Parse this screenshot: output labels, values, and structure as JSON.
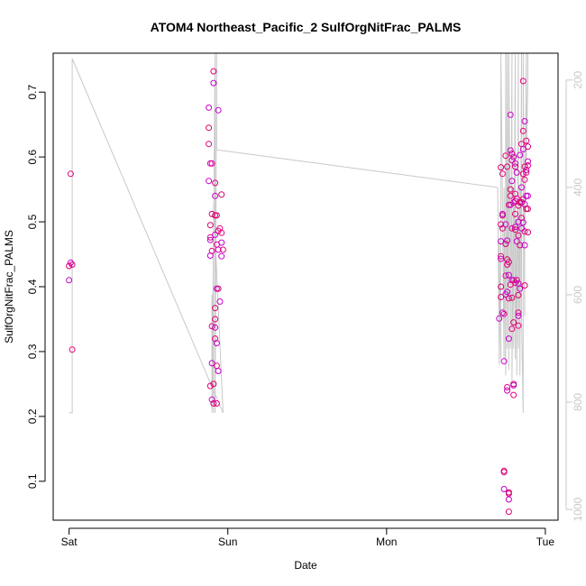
{
  "chart_data": {
    "type": "scatter",
    "title": "ATOM4 Northeast_Pacific_2 SulfOrgNitFrac_PALMS",
    "xlabel": "Date",
    "ylabel": "SulfOrgNitFrac_PALMS",
    "x_ticks": [
      "Sat",
      "Sun",
      "Mon",
      "Tue"
    ],
    "y_ticks": [
      "0.1",
      "0.2",
      "0.3",
      "0.4",
      "0.5",
      "0.6",
      "0.7"
    ],
    "y2_ticks": [
      "200",
      "400",
      "600",
      "800",
      "1000"
    ],
    "xlim": [
      -0.1,
      3.08
    ],
    "ylim": [
      0.04,
      0.76
    ],
    "y2lim": [
      1020,
      150
    ],
    "y2_reversed": true,
    "grid": false,
    "series_colors": {
      "points": "#e6007e",
      "secondary_line": "#c8c8c8"
    },
    "point_colors": [
      "#e6007e",
      "#cc00cc",
      "#d4006a",
      "#e0007a",
      "#c000c8"
    ],
    "points": [
      {
        "x": 0.01,
        "y": 0.574
      },
      {
        "x": 0.01,
        "y": 0.437
      },
      {
        "x": 0.0,
        "y": 0.432
      },
      {
        "x": 0.02,
        "y": 0.434
      },
      {
        "x": 0.0,
        "y": 0.41
      },
      {
        "x": 0.02,
        "y": 0.303
      },
      {
        "x": 0.88,
        "y": 0.676
      },
      {
        "x": 0.88,
        "y": 0.645
      },
      {
        "x": 0.88,
        "y": 0.62
      },
      {
        "x": 0.89,
        "y": 0.59
      },
      {
        "x": 0.9,
        "y": 0.59
      },
      {
        "x": 0.88,
        "y": 0.563
      },
      {
        "x": 0.89,
        "y": 0.495
      },
      {
        "x": 0.89,
        "y": 0.476
      },
      {
        "x": 0.89,
        "y": 0.472
      },
      {
        "x": 0.9,
        "y": 0.455
      },
      {
        "x": 0.89,
        "y": 0.448
      },
      {
        "x": 0.9,
        "y": 0.512
      },
      {
        "x": 0.9,
        "y": 0.339
      },
      {
        "x": 0.9,
        "y": 0.282
      },
      {
        "x": 0.89,
        "y": 0.247
      },
      {
        "x": 0.9,
        "y": 0.226
      },
      {
        "x": 0.91,
        "y": 0.22
      },
      {
        "x": 0.91,
        "y": 0.732
      },
      {
        "x": 0.91,
        "y": 0.714
      },
      {
        "x": 0.92,
        "y": 0.56
      },
      {
        "x": 0.92,
        "y": 0.54
      },
      {
        "x": 0.92,
        "y": 0.51
      },
      {
        "x": 0.93,
        "y": 0.51
      },
      {
        "x": 0.92,
        "y": 0.48
      },
      {
        "x": 0.93,
        "y": 0.465
      },
      {
        "x": 0.93,
        "y": 0.397
      },
      {
        "x": 0.92,
        "y": 0.367
      },
      {
        "x": 0.92,
        "y": 0.35
      },
      {
        "x": 0.92,
        "y": 0.337
      },
      {
        "x": 0.92,
        "y": 0.32
      },
      {
        "x": 0.93,
        "y": 0.313
      },
      {
        "x": 0.91,
        "y": 0.25
      },
      {
        "x": 0.93,
        "y": 0.22
      },
      {
        "x": 0.94,
        "y": 0.672
      },
      {
        "x": 0.94,
        "y": 0.486
      },
      {
        "x": 0.94,
        "y": 0.457
      },
      {
        "x": 0.94,
        "y": 0.397
      },
      {
        "x": 0.93,
        "y": 0.278
      },
      {
        "x": 0.94,
        "y": 0.27
      },
      {
        "x": 0.95,
        "y": 0.49
      },
      {
        "x": 0.95,
        "y": 0.377
      },
      {
        "x": 0.96,
        "y": 0.542
      },
      {
        "x": 0.96,
        "y": 0.483
      },
      {
        "x": 0.96,
        "y": 0.468
      },
      {
        "x": 0.97,
        "y": 0.457
      },
      {
        "x": 0.96,
        "y": 0.447
      },
      {
        "x": 2.72,
        "y": 0.584
      },
      {
        "x": 2.72,
        "y": 0.496
      },
      {
        "x": 2.72,
        "y": 0.47
      },
      {
        "x": 2.72,
        "y": 0.447
      },
      {
        "x": 2.72,
        "y": 0.443
      },
      {
        "x": 2.72,
        "y": 0.4
      },
      {
        "x": 2.72,
        "y": 0.384
      },
      {
        "x": 2.71,
        "y": 0.351
      },
      {
        "x": 2.73,
        "y": 0.574
      },
      {
        "x": 2.73,
        "y": 0.512
      },
      {
        "x": 2.73,
        "y": 0.51
      },
      {
        "x": 2.73,
        "y": 0.49
      },
      {
        "x": 2.73,
        "y": 0.36
      },
      {
        "x": 2.74,
        "y": 0.358
      },
      {
        "x": 2.74,
        "y": 0.285
      },
      {
        "x": 2.74,
        "y": 0.116
      },
      {
        "x": 2.74,
        "y": 0.114
      },
      {
        "x": 2.74,
        "y": 0.088
      },
      {
        "x": 2.75,
        "y": 0.602
      },
      {
        "x": 2.75,
        "y": 0.496
      },
      {
        "x": 2.75,
        "y": 0.466
      },
      {
        "x": 2.75,
        "y": 0.417
      },
      {
        "x": 2.75,
        "y": 0.388
      },
      {
        "x": 2.76,
        "y": 0.585
      },
      {
        "x": 2.76,
        "y": 0.471
      },
      {
        "x": 2.76,
        "y": 0.442
      },
      {
        "x": 2.76,
        "y": 0.434
      },
      {
        "x": 2.76,
        "y": 0.392
      },
      {
        "x": 2.76,
        "y": 0.245
      },
      {
        "x": 2.76,
        "y": 0.24
      },
      {
        "x": 2.77,
        "y": 0.526
      },
      {
        "x": 2.77,
        "y": 0.438
      },
      {
        "x": 2.77,
        "y": 0.418
      },
      {
        "x": 2.77,
        "y": 0.382
      },
      {
        "x": 2.77,
        "y": 0.32
      },
      {
        "x": 2.77,
        "y": 0.083
      },
      {
        "x": 2.77,
        "y": 0.081
      },
      {
        "x": 2.77,
        "y": 0.072
      },
      {
        "x": 2.77,
        "y": 0.053
      },
      {
        "x": 2.78,
        "y": 0.61
      },
      {
        "x": 2.78,
        "y": 0.55
      },
      {
        "x": 2.78,
        "y": 0.54
      },
      {
        "x": 2.78,
        "y": 0.526
      },
      {
        "x": 2.78,
        "y": 0.403
      },
      {
        "x": 2.78,
        "y": 0.665
      },
      {
        "x": 2.79,
        "y": 0.605
      },
      {
        "x": 2.79,
        "y": 0.595
      },
      {
        "x": 2.79,
        "y": 0.563
      },
      {
        "x": 2.79,
        "y": 0.49
      },
      {
        "x": 2.79,
        "y": 0.41
      },
      {
        "x": 2.79,
        "y": 0.383
      },
      {
        "x": 2.79,
        "y": 0.335
      },
      {
        "x": 2.8,
        "y": 0.6
      },
      {
        "x": 2.8,
        "y": 0.53
      },
      {
        "x": 2.8,
        "y": 0.41
      },
      {
        "x": 2.8,
        "y": 0.345
      },
      {
        "x": 2.8,
        "y": 0.25
      },
      {
        "x": 2.8,
        "y": 0.248
      },
      {
        "x": 2.8,
        "y": 0.233
      },
      {
        "x": 2.81,
        "y": 0.59
      },
      {
        "x": 2.81,
        "y": 0.585
      },
      {
        "x": 2.81,
        "y": 0.543
      },
      {
        "x": 2.81,
        "y": 0.532
      },
      {
        "x": 2.81,
        "y": 0.512
      },
      {
        "x": 2.81,
        "y": 0.492
      },
      {
        "x": 2.81,
        "y": 0.488
      },
      {
        "x": 2.81,
        "y": 0.406
      },
      {
        "x": 2.82,
        "y": 0.576
      },
      {
        "x": 2.82,
        "y": 0.536
      },
      {
        "x": 2.82,
        "y": 0.47
      },
      {
        "x": 2.82,
        "y": 0.41
      },
      {
        "x": 2.83,
        "y": 0.525
      },
      {
        "x": 2.83,
        "y": 0.5
      },
      {
        "x": 2.83,
        "y": 0.479
      },
      {
        "x": 2.83,
        "y": 0.405
      },
      {
        "x": 2.83,
        "y": 0.387
      },
      {
        "x": 2.83,
        "y": 0.36
      },
      {
        "x": 2.83,
        "y": 0.355
      },
      {
        "x": 2.83,
        "y": 0.34
      },
      {
        "x": 2.84,
        "y": 0.603
      },
      {
        "x": 2.84,
        "y": 0.53
      },
      {
        "x": 2.84,
        "y": 0.464
      },
      {
        "x": 2.84,
        "y": 0.397
      },
      {
        "x": 2.85,
        "y": 0.62
      },
      {
        "x": 2.85,
        "y": 0.553
      },
      {
        "x": 2.85,
        "y": 0.53
      },
      {
        "x": 2.85,
        "y": 0.506
      },
      {
        "x": 2.85,
        "y": 0.49
      },
      {
        "x": 2.86,
        "y": 0.64
      },
      {
        "x": 2.86,
        "y": 0.612
      },
      {
        "x": 2.86,
        "y": 0.574
      },
      {
        "x": 2.86,
        "y": 0.535
      },
      {
        "x": 2.86,
        "y": 0.499
      },
      {
        "x": 2.86,
        "y": 0.717
      },
      {
        "x": 2.87,
        "y": 0.655
      },
      {
        "x": 2.87,
        "y": 0.585
      },
      {
        "x": 2.87,
        "y": 0.565
      },
      {
        "x": 2.87,
        "y": 0.527
      },
      {
        "x": 2.87,
        "y": 0.485
      },
      {
        "x": 2.87,
        "y": 0.464
      },
      {
        "x": 2.87,
        "y": 0.402
      },
      {
        "x": 2.88,
        "y": 0.625
      },
      {
        "x": 2.88,
        "y": 0.58
      },
      {
        "x": 2.88,
        "y": 0.576
      },
      {
        "x": 2.88,
        "y": 0.54
      },
      {
        "x": 2.88,
        "y": 0.52
      },
      {
        "x": 2.89,
        "y": 0.616
      },
      {
        "x": 2.89,
        "y": 0.593
      },
      {
        "x": 2.89,
        "y": 0.587
      },
      {
        "x": 2.89,
        "y": 0.54
      },
      {
        "x": 2.89,
        "y": 0.52
      },
      {
        "x": 2.89,
        "y": 0.484
      }
    ],
    "secondary_line": {
      "axis": "right",
      "x": [
        0.0,
        0.02,
        0.02,
        0.97,
        0.97,
        0.91,
        0.91,
        0.9,
        0.9,
        0.92,
        0.92,
        0.93,
        0.93,
        2.7,
        2.7,
        2.71,
        2.71,
        2.72,
        2.72,
        2.74,
        2.74,
        2.75,
        2.75,
        2.76,
        2.76,
        2.77,
        2.77,
        2.78,
        2.78,
        2.79,
        2.79,
        2.8,
        2.8,
        2.81,
        2.81,
        2.82,
        2.82,
        2.83,
        2.83,
        2.84,
        2.84,
        2.85,
        2.85,
        2.86,
        2.86,
        2.87,
        2.87,
        2.88,
        2.88,
        2.89,
        2.89,
        2.9,
        2.9
      ],
      "y": [
        820,
        820,
        160,
        820,
        820,
        430,
        820,
        600,
        820,
        150,
        820,
        150,
        330,
        400,
        400,
        730,
        500,
        720,
        150,
        720,
        400,
        750,
        150,
        700,
        150,
        740,
        150,
        590,
        700,
        150,
        760,
        400,
        700,
        150,
        720,
        450,
        750,
        150,
        700,
        400,
        750,
        150,
        640,
        820,
        150,
        640,
        500,
        150,
        350,
        200,
        150,
        150,
        150
      ]
    }
  }
}
